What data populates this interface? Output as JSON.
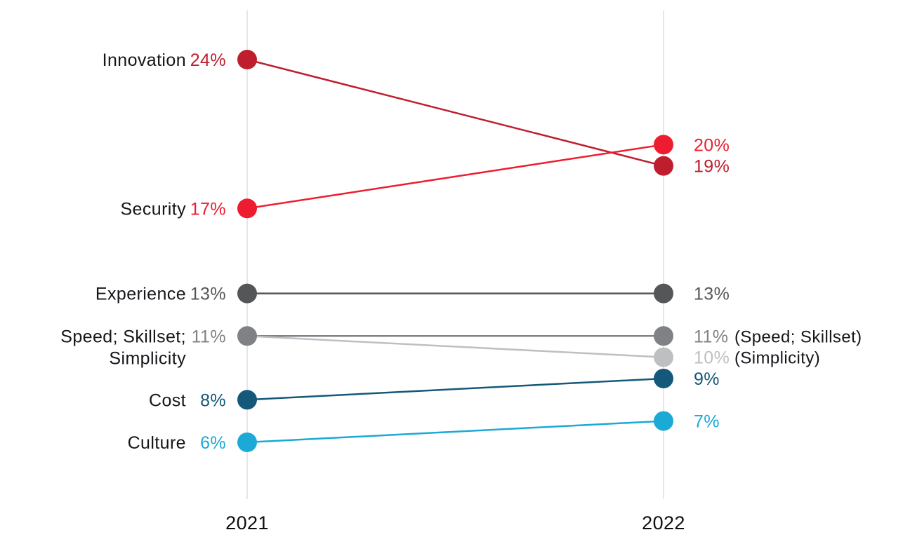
{
  "chart_data": {
    "type": "slope",
    "title": "",
    "unit": "%",
    "columns": [
      "2021",
      "2022"
    ],
    "value_suffix": "%",
    "series": [
      {
        "name": "Innovation",
        "label_lines": [
          "Innovation"
        ],
        "color": "#BF1E2E",
        "values": {
          "2021": 24,
          "2022": 19
        }
      },
      {
        "name": "Security",
        "label_lines": [
          "Security"
        ],
        "color": "#ED1C2E",
        "values": {
          "2021": 17,
          "2022": 20
        }
      },
      {
        "name": "Experience",
        "label_lines": [
          "Experience"
        ],
        "color": "#555658",
        "values": {
          "2021": 13,
          "2022": 13
        }
      },
      {
        "name": "Speed Skillset",
        "label_lines": [
          "Speed; Skillset;",
          "Simplicity"
        ],
        "color": "#7F8184",
        "values": {
          "2021": 11,
          "2022": 11
        },
        "right_note": "(Speed; Skillset)"
      },
      {
        "name": "Simplicity",
        "label_lines": null,
        "color": "#BDBFC1",
        "values": {
          "2021": 11,
          "2022": 10
        },
        "right_note": "(Simplicity)",
        "left_dot": false,
        "left_value": false
      },
      {
        "name": "Cost",
        "label_lines": [
          "Cost"
        ],
        "color": "#14587A",
        "values": {
          "2021": 8,
          "2022": 9
        }
      },
      {
        "name": "Culture",
        "label_lines": [
          "Culture"
        ],
        "color": "#1BA9D6",
        "values": {
          "2021": 6,
          "2022": 7
        }
      }
    ],
    "legend_position": "none",
    "grid": "two vertical axis lines only"
  },
  "colors": {
    "axis_line": "#E6E6E6",
    "label_text": "#15151A",
    "year_text": "#0E0E10",
    "note_text": "#15151A",
    "background": "#FFFFFF"
  }
}
